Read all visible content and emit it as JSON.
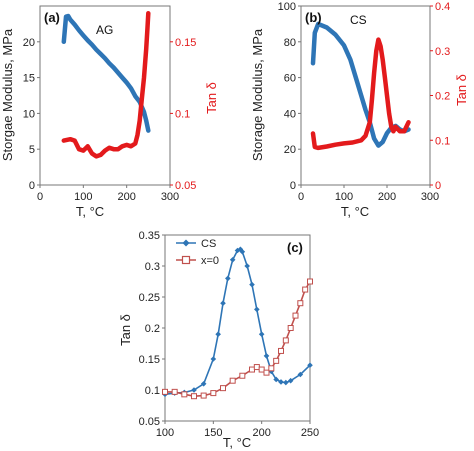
{
  "colors": {
    "blue": "#2e75b6",
    "red": "#e31a1c",
    "axis": "#777777"
  },
  "chart_data": [
    {
      "type": "line",
      "panel_label": "(a)",
      "annotation": "AG",
      "xlabel": "T, °C",
      "ylabel": "Storgae Modulus, MPa",
      "y2label": "Tan δ",
      "xlim": [
        0,
        300
      ],
      "ylim": [
        0,
        25
      ],
      "y2lim": [
        0.05,
        0.175
      ],
      "xticks": [
        "0",
        "100",
        "200",
        "300"
      ],
      "yticks": [
        "0",
        "5",
        "10",
        "15",
        "20"
      ],
      "y2ticks": [
        "0.05",
        "0.1",
        "0.15"
      ],
      "series": [
        {
          "axis": "left",
          "color": "#2e75b6",
          "x": [
            55,
            60,
            65,
            70,
            80,
            90,
            100,
            110,
            120,
            130,
            140,
            150,
            160,
            170,
            180,
            190,
            200,
            210,
            220,
            230,
            240,
            245,
            250
          ],
          "values": [
            20,
            23.5,
            23.6,
            23.1,
            22.4,
            21.6,
            20.9,
            20.2,
            19.6,
            18.9,
            18.3,
            17.7,
            17.0,
            16.4,
            15.7,
            15.0,
            14.3,
            13.5,
            12.4,
            11.6,
            10.2,
            9.0,
            7.6
          ]
        },
        {
          "axis": "right",
          "color": "#e31a1c",
          "x": [
            55,
            70,
            80,
            90,
            100,
            110,
            120,
            130,
            140,
            150,
            160,
            170,
            180,
            190,
            200,
            210,
            220,
            225,
            230,
            235,
            240,
            245,
            248,
            250
          ],
          "values": [
            0.081,
            0.082,
            0.081,
            0.075,
            0.074,
            0.077,
            0.072,
            0.07,
            0.071,
            0.074,
            0.076,
            0.075,
            0.075,
            0.077,
            0.078,
            0.077,
            0.079,
            0.085,
            0.095,
            0.11,
            0.125,
            0.145,
            0.16,
            0.17
          ]
        }
      ]
    },
    {
      "type": "line",
      "panel_label": "(b)",
      "annotation": "CS",
      "xlabel": "T, °C",
      "ylabel": "Storage Modulus, MPa",
      "y2label": "Tan δ",
      "xlim": [
        0,
        300
      ],
      "ylim": [
        0,
        100
      ],
      "y2lim": [
        0,
        0.4
      ],
      "xticks": [
        "0",
        "100",
        "200",
        "300"
      ],
      "yticks": [
        "0",
        "20",
        "40",
        "60",
        "80",
        "100"
      ],
      "y2ticks": [
        "0",
        "0.1",
        "0.2",
        "0.3",
        "0.4"
      ],
      "series": [
        {
          "axis": "left",
          "color": "#2e75b6",
          "x": [
            28,
            32,
            40,
            60,
            80,
            100,
            115,
            130,
            140,
            150,
            160,
            170,
            180,
            190,
            200,
            210,
            220,
            230,
            240,
            250
          ],
          "values": [
            68,
            85,
            90,
            88,
            84,
            78,
            70,
            58,
            50,
            42,
            35,
            26,
            22,
            24,
            29,
            32,
            33,
            31,
            30,
            31
          ]
        },
        {
          "axis": "right",
          "color": "#e31a1c",
          "x": [
            28,
            32,
            40,
            60,
            80,
            100,
            120,
            140,
            150,
            160,
            165,
            170,
            175,
            180,
            185,
            190,
            195,
            200,
            205,
            210,
            215,
            220,
            230,
            240,
            250
          ],
          "values": [
            0.115,
            0.085,
            0.083,
            0.086,
            0.09,
            0.093,
            0.095,
            0.1,
            0.11,
            0.14,
            0.19,
            0.25,
            0.3,
            0.325,
            0.31,
            0.28,
            0.24,
            0.2,
            0.16,
            0.13,
            0.12,
            0.13,
            0.12,
            0.12,
            0.14
          ]
        }
      ]
    },
    {
      "type": "line",
      "panel_label": "(c)",
      "xlabel": "T, °C",
      "ylabel": "Tan δ",
      "xlim": [
        100,
        250
      ],
      "ylim": [
        0.05,
        0.35
      ],
      "xticks": [
        "100",
        "150",
        "200",
        "250"
      ],
      "yticks": [
        "0.05",
        "0.1",
        "0.15",
        "0.2",
        "0.25",
        "0.3",
        "0.35"
      ],
      "legend_position": "top-left",
      "series": [
        {
          "name": "CS",
          "color": "#2e75b6",
          "marker": "diamond",
          "x": [
            100,
            110,
            120,
            130,
            140,
            150,
            155,
            160,
            165,
            170,
            175,
            178,
            180,
            185,
            190,
            195,
            200,
            205,
            210,
            215,
            220,
            225,
            230,
            240,
            250
          ],
          "values": [
            0.093,
            0.095,
            0.096,
            0.1,
            0.11,
            0.15,
            0.19,
            0.24,
            0.28,
            0.31,
            0.325,
            0.327,
            0.323,
            0.3,
            0.27,
            0.23,
            0.19,
            0.155,
            0.13,
            0.117,
            0.113,
            0.112,
            0.115,
            0.125,
            0.14
          ]
        },
        {
          "name": "x=0",
          "color": "#c0504d",
          "marker": "square",
          "x": [
            100,
            110,
            120,
            130,
            140,
            150,
            160,
            170,
            180,
            190,
            195,
            200,
            205,
            210,
            215,
            220,
            225,
            230,
            235,
            240,
            245,
            250
          ],
          "values": [
            0.097,
            0.097,
            0.093,
            0.09,
            0.091,
            0.095,
            0.103,
            0.115,
            0.123,
            0.133,
            0.137,
            0.133,
            0.128,
            0.135,
            0.147,
            0.163,
            0.18,
            0.2,
            0.22,
            0.24,
            0.262,
            0.275
          ]
        }
      ]
    }
  ]
}
